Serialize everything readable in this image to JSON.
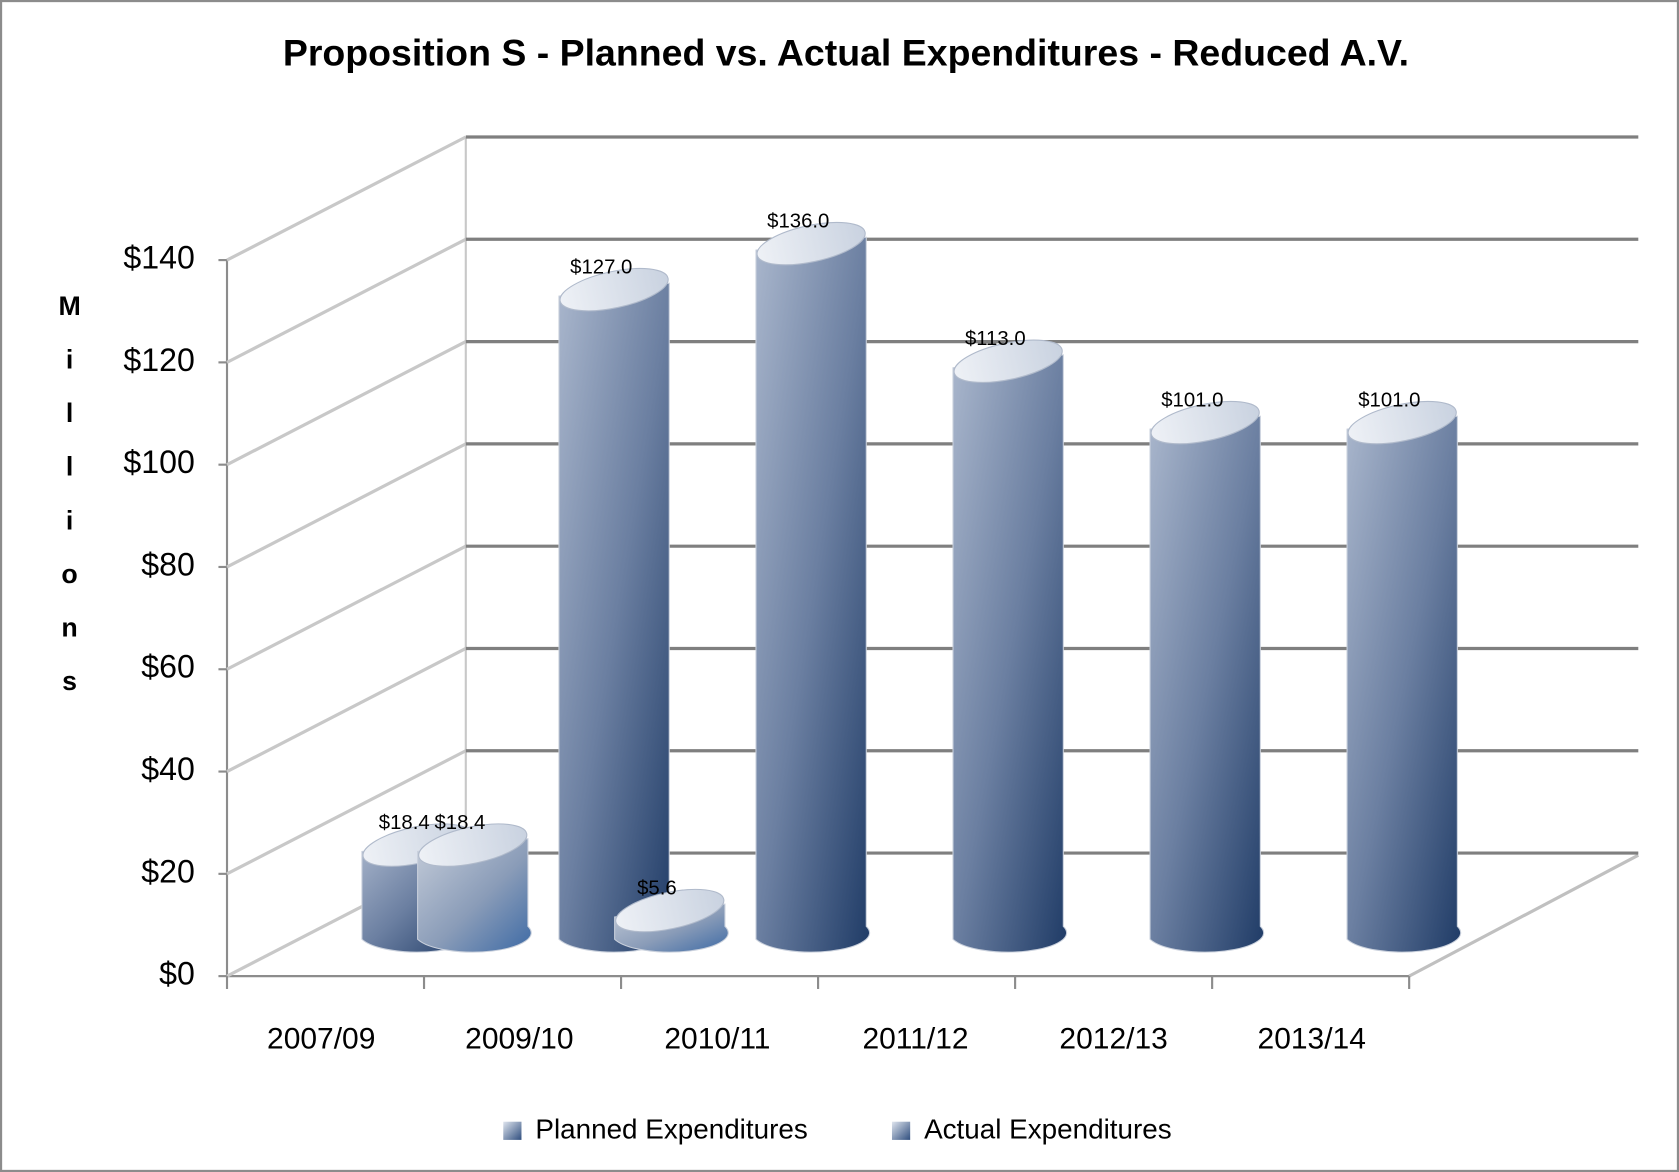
{
  "chart_data": {
    "type": "bar3d",
    "title": "Proposition S - Planned vs. Actual Expenditures - Reduced A.V.",
    "ylabel": "Millions",
    "categories": [
      "2007/09",
      "2009/10",
      "2010/11",
      "2011/12",
      "2012/13",
      "2013/14"
    ],
    "series": [
      {
        "name": "Planned Expenditures",
        "color": "#5a6f8f",
        "values": [
          18.4,
          127.0,
          136.0,
          113.0,
          101.0,
          101.0
        ],
        "value_labels": [
          "$18.4",
          "$127.0",
          "$136.0",
          "$113.0",
          "$101.0",
          "$101.0"
        ]
      },
      {
        "name": "Actual Expenditures",
        "color": "#4a6a9a",
        "values": [
          18.4,
          5.6,
          null,
          null,
          null,
          null
        ],
        "value_labels": [
          "$18.4",
          "$5.6",
          null,
          null,
          null,
          null
        ]
      }
    ],
    "ylim": [
      0,
      140
    ],
    "yticks": [
      {
        "value": 0,
        "label": "$0"
      },
      {
        "value": 20,
        "label": "$20"
      },
      {
        "value": 40,
        "label": "$40"
      },
      {
        "value": 60,
        "label": "$60"
      },
      {
        "value": 80,
        "label": "$80"
      },
      {
        "value": 100,
        "label": "$100"
      },
      {
        "value": 120,
        "label": "$120"
      },
      {
        "value": 140,
        "label": "$140"
      }
    ],
    "grid": true,
    "legend": "bottom"
  }
}
